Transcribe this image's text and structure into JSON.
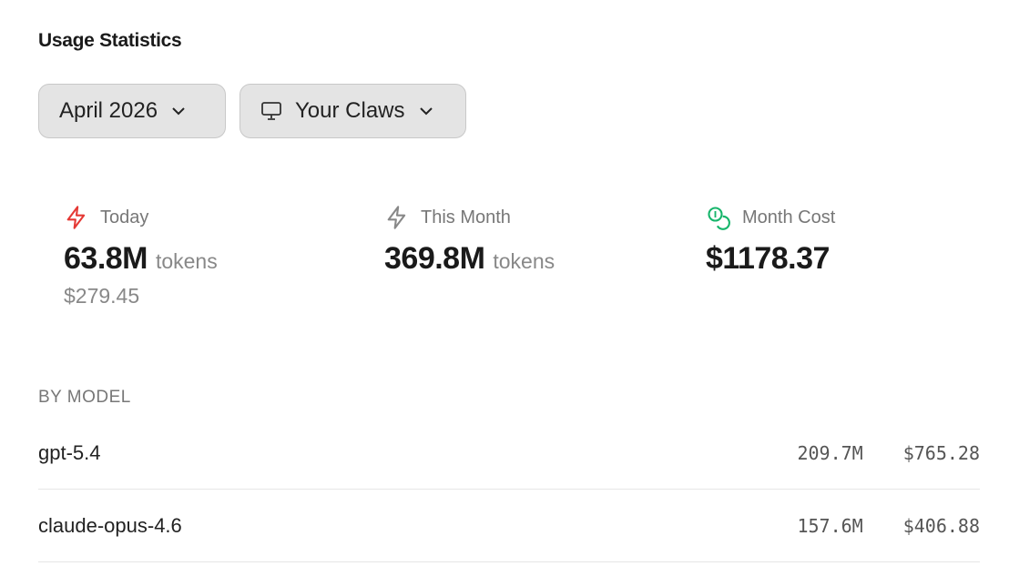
{
  "title": "Usage Statistics",
  "filters": {
    "month": "April 2026",
    "scope": "Your Claws"
  },
  "stats": [
    {
      "label": "Today",
      "value": "63.8M",
      "unit": "tokens",
      "cost": "$279.45",
      "icon": "lightning-icon",
      "color": "#e53935"
    },
    {
      "label": "This Month",
      "value": "369.8M",
      "unit": "tokens",
      "icon": "lightning-icon",
      "color": "#888888"
    },
    {
      "label": "Month Cost",
      "value": "$1178.37",
      "icon": "coins-icon",
      "color": "#16b56b"
    }
  ],
  "by_model": {
    "heading": "BY MODEL",
    "rows": [
      {
        "model": "gpt-5.4",
        "tokens": "209.7M",
        "cost": "$765.28"
      },
      {
        "model": "claude-opus-4.6",
        "tokens": "157.6M",
        "cost": "$406.88"
      }
    ]
  }
}
